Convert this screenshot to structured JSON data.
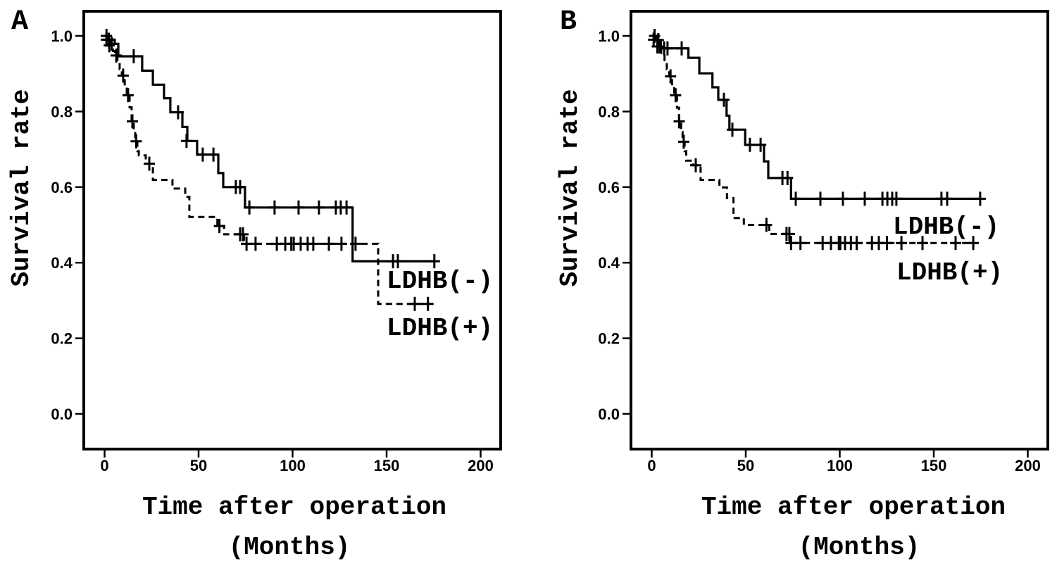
{
  "figure": {
    "background": "#ffffff",
    "ink": "#000000",
    "description": "Two Kaplan-Meier survival curve panels comparing LDHB(-) and LDHB(+) groups"
  },
  "chart_data": [
    {
      "panel": "A",
      "type": "line",
      "subtype": "kaplan_meier_step",
      "title": "",
      "xlabel": "Time after operation",
      "xlabel2": "(Months)",
      "ylabel": "Survival rate",
      "xticks": [
        0,
        50,
        100,
        150,
        200
      ],
      "yticks": [
        1.0,
        0.8,
        0.6,
        0.4,
        0.2,
        0.0
      ],
      "ytick_labels": [
        "1.0",
        "0.8",
        "0.6",
        "0.4",
        "0.2",
        "0.0"
      ],
      "xlim": [
        -11,
        211
      ],
      "ylim": [
        -0.09,
        1.07
      ],
      "grid": false,
      "legend_position": "inside-lower-right",
      "series": [
        {
          "name": "LDHB(-)",
          "line_style": "solid",
          "steps": [
            [
              0,
              1.0
            ],
            [
              1.3,
              0.99
            ],
            [
              5.4,
              0.979
            ],
            [
              7.3,
              0.946
            ],
            [
              20,
              0.908
            ],
            [
              25.7,
              0.871
            ],
            [
              31.6,
              0.835
            ],
            [
              35,
              0.798
            ],
            [
              41.4,
              0.759
            ],
            [
              44,
              0.722
            ],
            [
              49.2,
              0.686
            ],
            [
              60.5,
              0.637
            ],
            [
              63.1,
              0.6
            ],
            [
              74.7,
              0.546
            ],
            [
              131.9,
              0.404
            ],
            [
              175.8,
              0.404
            ]
          ],
          "censors": [
            [
              1,
              1.0
            ],
            [
              2.3,
              0.99
            ],
            [
              3.8,
              0.979
            ],
            [
              15.5,
              0.946
            ],
            [
              39.1,
              0.798
            ],
            [
              43.6,
              0.722
            ],
            [
              52.2,
              0.686
            ],
            [
              57.9,
              0.686
            ],
            [
              69.8,
              0.6
            ],
            [
              72.1,
              0.6
            ],
            [
              77,
              0.546
            ],
            [
              90.4,
              0.546
            ],
            [
              103.2,
              0.546
            ],
            [
              114,
              0.546
            ],
            [
              123,
              0.546
            ],
            [
              125.6,
              0.546
            ],
            [
              128.7,
              0.546
            ],
            [
              153.4,
              0.404
            ],
            [
              156,
              0.404
            ],
            [
              175.4,
              0.404
            ]
          ]
        },
        {
          "name": "LDHB(+)",
          "line_style": "dashed",
          "steps": [
            [
              0,
              1.0
            ],
            [
              1.3,
              0.99
            ],
            [
              3,
              0.975
            ],
            [
              4.5,
              0.96
            ],
            [
              5.5,
              0.948
            ],
            [
              6.8,
              0.93
            ],
            [
              8,
              0.912
            ],
            [
              9.2,
              0.895
            ],
            [
              10.7,
              0.867
            ],
            [
              11.8,
              0.843
            ],
            [
              13.3,
              0.811
            ],
            [
              14.4,
              0.774
            ],
            [
              15.5,
              0.746
            ],
            [
              16.3,
              0.721
            ],
            [
              17.4,
              0.695
            ],
            [
              18.2,
              0.684
            ],
            [
              21.9,
              0.662
            ],
            [
              25.7,
              0.619
            ],
            [
              36.1,
              0.596
            ],
            [
              42.9,
              0.574
            ],
            [
              45.1,
              0.521
            ],
            [
              60,
              0.497
            ],
            [
              63.6,
              0.475
            ],
            [
              74.2,
              0.45
            ],
            [
              145.5,
              0.291
            ],
            [
              173.6,
              0.291
            ]
          ],
          "censors": [
            [
              1,
              0.99
            ],
            [
              2.5,
              0.975
            ],
            [
              6.2,
              0.948
            ],
            [
              9.9,
              0.895
            ],
            [
              12.5,
              0.843
            ],
            [
              14.8,
              0.774
            ],
            [
              16.8,
              0.721
            ],
            [
              23.8,
              0.662
            ],
            [
              61.1,
              0.497
            ],
            [
              72.1,
              0.475
            ],
            [
              73.6,
              0.475
            ],
            [
              75.5,
              0.45
            ],
            [
              80.3,
              0.45
            ],
            [
              91.6,
              0.45
            ],
            [
              96.1,
              0.45
            ],
            [
              99.3,
              0.45
            ],
            [
              100.6,
              0.45
            ],
            [
              104.3,
              0.45
            ],
            [
              108,
              0.45
            ],
            [
              111,
              0.45
            ],
            [
              119.3,
              0.45
            ],
            [
              126,
              0.45
            ],
            [
              133.5,
              0.45
            ],
            [
              165,
              0.291
            ],
            [
              172,
              0.291
            ]
          ]
        }
      ]
    },
    {
      "panel": "B",
      "type": "line",
      "subtype": "kaplan_meier_step",
      "title": "",
      "xlabel": "Time after operation",
      "xlabel2": "(Months)",
      "ylabel": "Survival rate",
      "xticks": [
        0,
        50,
        100,
        150,
        200
      ],
      "yticks": [
        1.0,
        0.8,
        0.6,
        0.4,
        0.2,
        0.0
      ],
      "ytick_labels": [
        "1.0",
        "0.8",
        "0.6",
        "0.4",
        "0.2",
        "0.0"
      ],
      "xlim": [
        -11,
        211
      ],
      "ylim": [
        -0.09,
        1.07
      ],
      "grid": false,
      "legend_position": "inside-right",
      "series": [
        {
          "name": "LDHB(-)",
          "line_style": "solid",
          "steps": [
            [
              0,
              1.0
            ],
            [
              2.4,
              0.989
            ],
            [
              4.8,
              0.967
            ],
            [
              19.5,
              0.942
            ],
            [
              25.3,
              0.901
            ],
            [
              32.3,
              0.864
            ],
            [
              35.4,
              0.831
            ],
            [
              39.8,
              0.789
            ],
            [
              41.3,
              0.752
            ],
            [
              49.7,
              0.712
            ],
            [
              59.7,
              0.668
            ],
            [
              62,
              0.624
            ],
            [
              74.1,
              0.569
            ],
            [
              175,
              0.569
            ]
          ],
          "censors": [
            [
              1.5,
              1.0
            ],
            [
              3.5,
              0.989
            ],
            [
              6.6,
              0.967
            ],
            [
              8.4,
              0.967
            ],
            [
              15.9,
              0.967
            ],
            [
              38.4,
              0.831
            ],
            [
              42.9,
              0.752
            ],
            [
              52.2,
              0.712
            ],
            [
              57.9,
              0.712
            ],
            [
              69.5,
              0.624
            ],
            [
              72.2,
              0.624
            ],
            [
              76.6,
              0.569
            ],
            [
              89.7,
              0.569
            ],
            [
              101.7,
              0.569
            ],
            [
              113.3,
              0.569
            ],
            [
              122.7,
              0.569
            ],
            [
              125.3,
              0.569
            ],
            [
              127.9,
              0.569
            ],
            [
              130.1,
              0.569
            ],
            [
              154.1,
              0.569
            ],
            [
              157.1,
              0.569
            ],
            [
              174.7,
              0.569
            ]
          ]
        },
        {
          "name": "LDHB(+)",
          "line_style": "dashed",
          "steps": [
            [
              0,
              1.0
            ],
            [
              1.5,
              0.99
            ],
            [
              3.2,
              0.972
            ],
            [
              5,
              0.948
            ],
            [
              6.8,
              0.93
            ],
            [
              8,
              0.912
            ],
            [
              9.3,
              0.893
            ],
            [
              10.8,
              0.866
            ],
            [
              12,
              0.843
            ],
            [
              13.4,
              0.81
            ],
            [
              14.5,
              0.774
            ],
            [
              15.6,
              0.746
            ],
            [
              16.4,
              0.72
            ],
            [
              17.5,
              0.695
            ],
            [
              18.3,
              0.67
            ],
            [
              22,
              0.658
            ],
            [
              26,
              0.619
            ],
            [
              36,
              0.599
            ],
            [
              40,
              0.571
            ],
            [
              43.5,
              0.518
            ],
            [
              49,
              0.5
            ],
            [
              62.5,
              0.476
            ],
            [
              73.5,
              0.452
            ],
            [
              171.3,
              0.452
            ]
          ],
          "censors": [
            [
              1,
              0.99
            ],
            [
              3,
              0.972
            ],
            [
              4.2,
              0.972
            ],
            [
              10,
              0.893
            ],
            [
              12.7,
              0.843
            ],
            [
              14.6,
              0.774
            ],
            [
              17,
              0.72
            ],
            [
              23.4,
              0.658
            ],
            [
              61,
              0.5
            ],
            [
              71.7,
              0.476
            ],
            [
              73.2,
              0.476
            ],
            [
              74.1,
              0.452
            ],
            [
              79.1,
              0.452
            ],
            [
              90.9,
              0.452
            ],
            [
              95.3,
              0.452
            ],
            [
              99.5,
              0.452
            ],
            [
              100.3,
              0.452
            ],
            [
              102.8,
              0.452
            ],
            [
              105.9,
              0.452
            ],
            [
              109,
              0.452
            ],
            [
              117.1,
              0.452
            ],
            [
              120.8,
              0.452
            ],
            [
              125.1,
              0.452
            ],
            [
              132.8,
              0.452
            ],
            [
              144,
              0.452
            ],
            [
              161.6,
              0.452
            ],
            [
              171,
              0.452
            ]
          ]
        }
      ]
    }
  ]
}
